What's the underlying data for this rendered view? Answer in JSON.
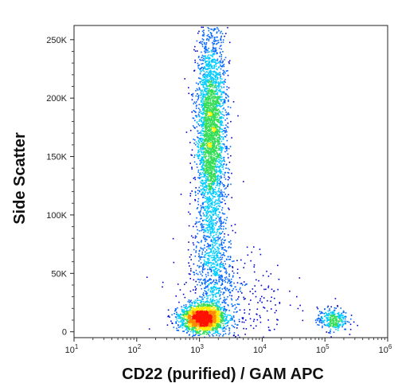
{
  "chart_data": {
    "type": "scatter",
    "subtype": "flow-cytometry density dot plot",
    "xlabel": "CD22 (purified) / GAM APC",
    "ylabel": "Side Scatter",
    "x_scale": "log",
    "xlim": [
      10,
      1000000
    ],
    "ylim": [
      -5000,
      262144
    ],
    "x_ticks": [
      {
        "value": 10,
        "base": "10",
        "exp": "1"
      },
      {
        "value": 100,
        "base": "10",
        "exp": "2"
      },
      {
        "value": 1000,
        "base": "10",
        "exp": "3"
      },
      {
        "value": 10000,
        "base": "10",
        "exp": "4"
      },
      {
        "value": 100000,
        "base": "10",
        "exp": "5"
      },
      {
        "value": 1000000,
        "base": "10",
        "exp": "6"
      }
    ],
    "y_ticks": [
      {
        "value": 0,
        "label": "0"
      },
      {
        "value": 50000,
        "label": "50K"
      },
      {
        "value": 100000,
        "label": "100K"
      },
      {
        "value": 150000,
        "label": "150K"
      },
      {
        "value": 200000,
        "label": "200K"
      },
      {
        "value": 250000,
        "label": "250K"
      }
    ],
    "color_scale": [
      "#0000cc",
      "#0066ff",
      "#00ccff",
      "#33dd55",
      "#ffee00",
      "#ff8800",
      "#ff1100"
    ],
    "populations": [
      {
        "center_x": 1500,
        "center_y": 170000,
        "spread_log_x": 0.12,
        "spread_y": 45000,
        "count": 3000
      },
      {
        "center_x": 1100,
        "center_y": 12000,
        "spread_log_x": 0.18,
        "spread_y": 6000,
        "count": 1800
      },
      {
        "center_x": 1600,
        "center_y": 55000,
        "spread_log_x": 0.15,
        "spread_y": 30000,
        "count": 700
      },
      {
        "center_x": 130000,
        "center_y": 11000,
        "spread_log_x": 0.12,
        "spread_y": 5000,
        "count": 300
      },
      {
        "center_x": 3000,
        "center_y": 25000,
        "spread_log_x": 0.45,
        "spread_y": 25000,
        "count": 350
      }
    ],
    "grid": false,
    "legend": "none"
  }
}
